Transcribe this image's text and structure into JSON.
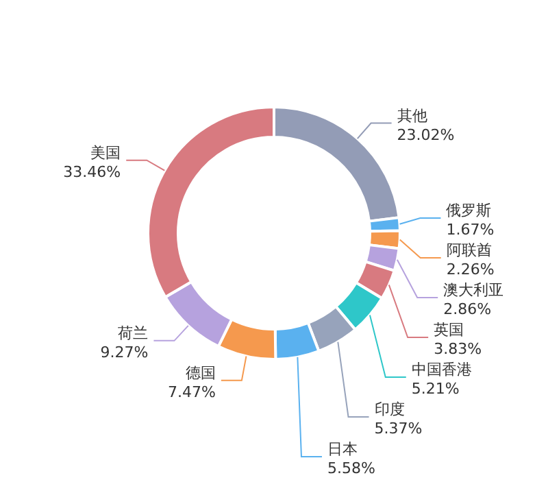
{
  "chart_data": {
    "type": "donut",
    "categories": [
      "其他",
      "俄罗斯",
      "阿联酋",
      "澳大利亚",
      "英国",
      "中国香港",
      "印度",
      "日本",
      "德国",
      "荷兰",
      "美国"
    ],
    "values": [
      23.02,
      1.67,
      2.26,
      2.86,
      3.83,
      5.21,
      5.37,
      5.58,
      7.47,
      9.27,
      33.46
    ],
    "colors": [
      "#939cb6",
      "#5ab1ef",
      "#f5994e",
      "#b6a2de",
      "#d87a80",
      "#2ec7c9",
      "#97a3bb",
      "#5ab1ef",
      "#f5994e",
      "#b6a2de",
      "#d87a80"
    ],
    "value_labels": [
      "23.02%",
      "1.67%",
      "2.26%",
      "2.86%",
      "3.83%",
      "5.21%",
      "5.37%",
      "5.58%",
      "7.47%",
      "9.27%",
      "33.46%"
    ]
  }
}
